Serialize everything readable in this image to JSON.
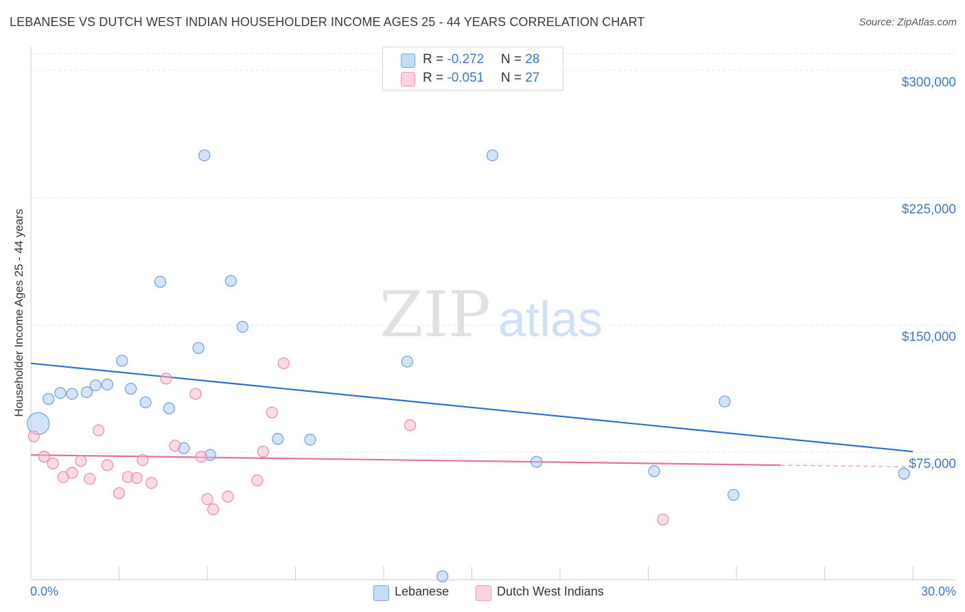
{
  "header": {
    "title": "LEBANESE VS DUTCH WEST INDIAN HOUSEHOLDER INCOME AGES 25 - 44 YEARS CORRELATION CHART",
    "source": "Source: ZipAtlas.com"
  },
  "watermark": {
    "zip": "ZIP",
    "atlas": "atlas"
  },
  "legend": {
    "rows": [
      {
        "r_label": "R = ",
        "r_value": "-0.272",
        "n_label": "N = ",
        "n_value": "28",
        "color": "#a9c8f0"
      },
      {
        "r_label": "R = ",
        "r_value": "-0.051",
        "n_label": "N = ",
        "n_value": "27",
        "color": "#f7b7c9"
      }
    ]
  },
  "bottom_legend": {
    "lebanese": "Lebanese",
    "dutch": "Dutch West Indians"
  },
  "chart_data": {
    "type": "scatter",
    "title": "LEBANESE VS DUTCH WEST INDIAN HOUSEHOLDER INCOME AGES 25 - 44 YEARS CORRELATION CHART",
    "xlabel": "",
    "ylabel": "Householder Income Ages 25 - 44 years",
    "xlim": [
      0,
      30
    ],
    "ylim": [
      0,
      310000
    ],
    "x_tick_labels": [
      "0.0%",
      "30.0%"
    ],
    "y_ticks": [
      75000,
      150000,
      225000,
      300000
    ],
    "y_tick_labels": [
      "$75,000",
      "$150,000",
      "$225,000",
      "$300,000"
    ],
    "grid": true,
    "legend_position": "top-center",
    "series": [
      {
        "name": "Lebanese",
        "color": "#a9c8f0",
        "stroke": "#6a9fdc",
        "trend_color": "#2f6fcf",
        "r": -0.272,
        "n": 28,
        "trend": {
          "x": [
            0,
            30
          ],
          "y": [
            127500,
            75500
          ]
        },
        "points": [
          {
            "x": 0.25,
            "y": 92000,
            "big": true
          },
          {
            "x": 0.6,
            "y": 106500
          },
          {
            "x": 1.0,
            "y": 110000
          },
          {
            "x": 1.4,
            "y": 109500
          },
          {
            "x": 1.9,
            "y": 110500
          },
          {
            "x": 2.2,
            "y": 114500
          },
          {
            "x": 2.6,
            "y": 115000
          },
          {
            "x": 3.1,
            "y": 129000
          },
          {
            "x": 3.4,
            "y": 112500
          },
          {
            "x": 3.9,
            "y": 104500
          },
          {
            "x": 4.4,
            "y": 175500
          },
          {
            "x": 4.7,
            "y": 101000
          },
          {
            "x": 5.2,
            "y": 77500
          },
          {
            "x": 5.7,
            "y": 136500
          },
          {
            "x": 5.9,
            "y": 250000
          },
          {
            "x": 6.1,
            "y": 73500
          },
          {
            "x": 6.8,
            "y": 176000
          },
          {
            "x": 7.2,
            "y": 149000
          },
          {
            "x": 8.4,
            "y": 83000
          },
          {
            "x": 9.5,
            "y": 82500
          },
          {
            "x": 12.8,
            "y": 128500
          },
          {
            "x": 14.0,
            "y": 2000
          },
          {
            "x": 15.7,
            "y": 250000
          },
          {
            "x": 17.2,
            "y": 69500
          },
          {
            "x": 21.2,
            "y": 64000
          },
          {
            "x": 23.6,
            "y": 105000
          },
          {
            "x": 23.9,
            "y": 50000
          },
          {
            "x": 29.7,
            "y": 62500
          }
        ]
      },
      {
        "name": "Dutch West Indians",
        "color": "#f7b7c9",
        "stroke": "#e98aa8",
        "trend_color": "#e5709a",
        "r": -0.051,
        "n": 27,
        "trend": {
          "x": [
            0,
            25.5
          ],
          "y": [
            73500,
            67500
          ]
        },
        "trend_dashed": {
          "x": [
            25.5,
            30
          ],
          "y": [
            67500,
            66500
          ]
        },
        "points": [
          {
            "x": 0.1,
            "y": 84500
          },
          {
            "x": 0.45,
            "y": 72500
          },
          {
            "x": 0.75,
            "y": 68500
          },
          {
            "x": 1.1,
            "y": 60500
          },
          {
            "x": 1.4,
            "y": 63000
          },
          {
            "x": 1.7,
            "y": 70000
          },
          {
            "x": 2.0,
            "y": 59500
          },
          {
            "x": 2.3,
            "y": 88000
          },
          {
            "x": 2.6,
            "y": 67500
          },
          {
            "x": 3.0,
            "y": 51000
          },
          {
            "x": 3.3,
            "y": 60500
          },
          {
            "x": 3.6,
            "y": 60000
          },
          {
            "x": 3.8,
            "y": 70500
          },
          {
            "x": 4.1,
            "y": 57000
          },
          {
            "x": 4.6,
            "y": 118500
          },
          {
            "x": 4.9,
            "y": 79000
          },
          {
            "x": 5.6,
            "y": 109500
          },
          {
            "x": 5.8,
            "y": 72500
          },
          {
            "x": 6.0,
            "y": 47500
          },
          {
            "x": 6.2,
            "y": 41500
          },
          {
            "x": 6.7,
            "y": 49000
          },
          {
            "x": 7.7,
            "y": 58500
          },
          {
            "x": 7.9,
            "y": 75500
          },
          {
            "x": 8.2,
            "y": 98500
          },
          {
            "x": 8.6,
            "y": 127500
          },
          {
            "x": 12.9,
            "y": 91000
          },
          {
            "x": 21.5,
            "y": 35500
          }
        ]
      }
    ]
  }
}
